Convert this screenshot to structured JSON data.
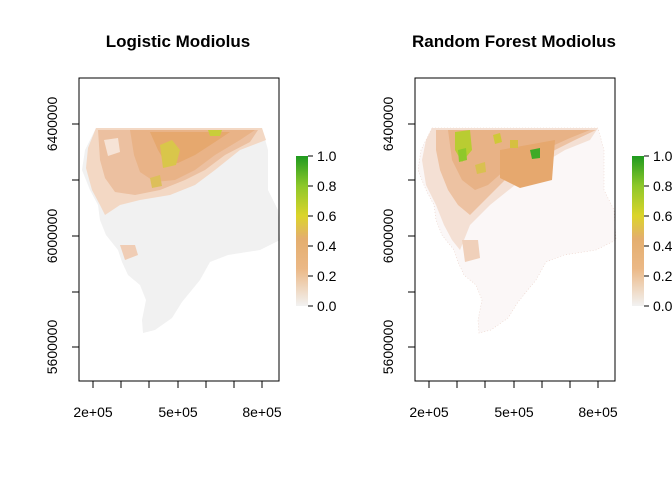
{
  "chart_data": [
    {
      "type": "heatmap",
      "title": "Logistic Modiolus",
      "xlabel": "",
      "ylabel": "",
      "x_ticks": [
        200000,
        300000,
        400000,
        500000,
        600000,
        700000,
        800000
      ],
      "x_tick_labels": [
        "2e+05",
        "",
        "",
        "5e+05",
        "",
        "",
        "8e+05"
      ],
      "y_ticks": [
        5600000,
        5800000,
        6000000,
        6200000,
        6400000
      ],
      "y_tick_labels": [
        "5600000",
        "",
        "6000000",
        "",
        "6400000"
      ],
      "xlim": [
        160000,
        870000
      ],
      "ylim": [
        5480000,
        6560000
      ],
      "legend": {
        "labels": [
          "0.0",
          "0.2",
          "0.4",
          "0.6",
          "0.8",
          "1.0"
        ],
        "values": [
          0,
          0.2,
          0.4,
          0.6,
          0.8,
          1.0
        ],
        "placement": "right"
      },
      "color_scale": [
        "#f2f2f2",
        "#ebb886",
        "#dcd42a",
        "#8ec82a",
        "#1f9a1f"
      ],
      "values_description_visible": "predicted suitability 0.0–0.5; highest (~0.4–0.5) in north-central band"
    },
    {
      "type": "heatmap",
      "title": "Random Forest Modiolus",
      "xlabel": "",
      "ylabel": "",
      "x_ticks": [
        200000,
        300000,
        400000,
        500000,
        600000,
        700000,
        800000
      ],
      "x_tick_labels": [
        "2e+05",
        "",
        "",
        "5e+05",
        "",
        "",
        "8e+05"
      ],
      "y_ticks": [
        5600000,
        5800000,
        6000000,
        6200000,
        6400000
      ],
      "y_tick_labels": [
        "5600000",
        "",
        "6000000",
        "",
        "6400000"
      ],
      "xlim": [
        160000,
        870000
      ],
      "ylim": [
        5480000,
        6560000
      ],
      "legend": {
        "labels": [
          "0.0",
          "0.2",
          "0.4",
          "0.6",
          "0.8",
          "1.0"
        ],
        "values": [
          0,
          0.2,
          0.4,
          0.6,
          0.8,
          1.0
        ],
        "placement": "right"
      },
      "color_scale": [
        "#f2f2f2",
        "#ebb886",
        "#dcd42a",
        "#8ec82a",
        "#1f9a1f"
      ],
      "values_description_visible": "predicted suitability 0.0–0.8; patchy highs (~0.6–0.8) in north"
    }
  ]
}
